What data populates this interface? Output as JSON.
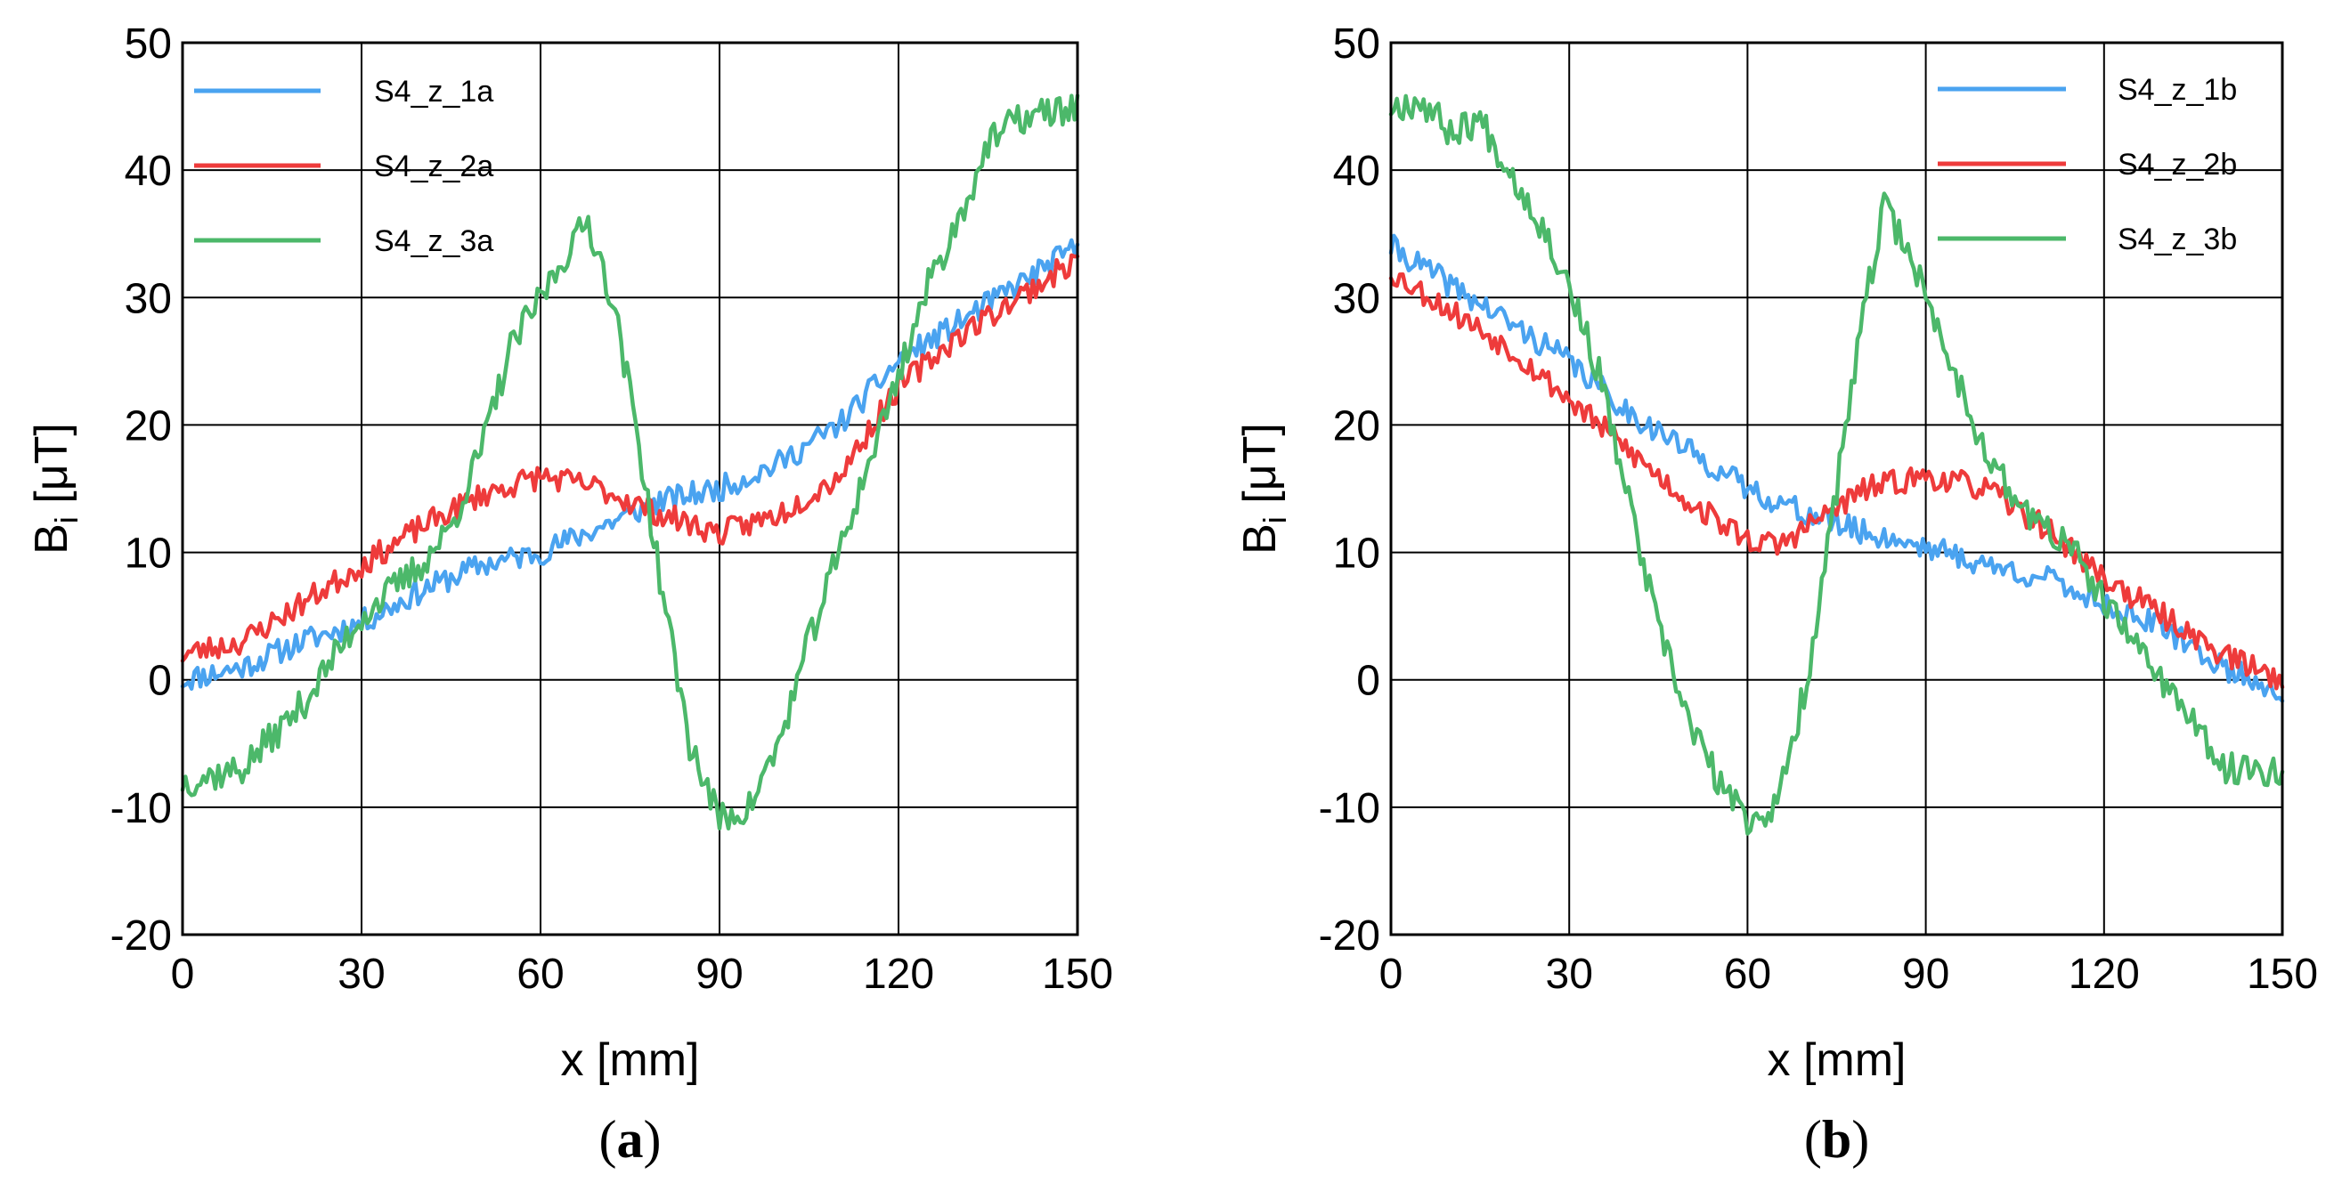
{
  "colors": {
    "series1": "#4aa3f0",
    "series2": "#ee3b3b",
    "series3": "#4cb86a"
  },
  "chart_data": [
    {
      "type": "line",
      "caption": "a",
      "xlabel": "x [mm]",
      "ylabel": "B",
      "ylabel_sub": "i",
      "ylabel_unit": " [μT]",
      "xlim": [
        0,
        150
      ],
      "ylim": [
        -20,
        50
      ],
      "xticks": [
        0,
        30,
        60,
        90,
        120,
        150
      ],
      "yticks": [
        -20,
        -10,
        0,
        10,
        20,
        30,
        40,
        50
      ],
      "grid": true,
      "legend_position": "top-left",
      "series": [
        {
          "name": "S4_z_1a",
          "color": "#4aa3f0",
          "noise": 1.0,
          "seed": 11,
          "x": [
            0,
            10,
            20,
            30,
            40,
            50,
            60,
            70,
            80,
            90,
            100,
            110,
            120,
            130,
            140,
            150
          ],
          "y": [
            0,
            1,
            3,
            4.5,
            7,
            9,
            10,
            12,
            14,
            15,
            17,
            20,
            25,
            28,
            31,
            34
          ]
        },
        {
          "name": "S4_z_2a",
          "color": "#ee3b3b",
          "noise": 1.0,
          "seed": 23,
          "x": [
            0,
            10,
            20,
            30,
            40,
            50,
            60,
            70,
            80,
            90,
            100,
            110,
            120,
            130,
            140,
            150
          ],
          "y": [
            2,
            3,
            6,
            9,
            12,
            14.5,
            16,
            15,
            13,
            11.5,
            13,
            16,
            23,
            27,
            30,
            33
          ]
        },
        {
          "name": "S4_z_3a",
          "color": "#4cb86a",
          "noise": 1.3,
          "seed": 37,
          "x": [
            0,
            10,
            20,
            30,
            40,
            45,
            50,
            55,
            60,
            65,
            68,
            72,
            76,
            80,
            85,
            90,
            95,
            100,
            105,
            110,
            115,
            120,
            125,
            130,
            135,
            140,
            150
          ],
          "y": [
            -8,
            -7,
            -2,
            5,
            9,
            12,
            18,
            26,
            30,
            34,
            36,
            30,
            20,
            8,
            -5,
            -11,
            -10,
            -5,
            3,
            10,
            17,
            24,
            31,
            36,
            42,
            44,
            45
          ]
        }
      ]
    },
    {
      "type": "line",
      "caption": "b",
      "xlabel": "x [mm]",
      "ylabel": "B",
      "ylabel_sub": "i",
      "ylabel_unit": " [μT]",
      "xlim": [
        0,
        150
      ],
      "ylim": [
        -20,
        50
      ],
      "xticks": [
        0,
        30,
        60,
        90,
        120,
        150
      ],
      "yticks": [
        -20,
        -10,
        0,
        10,
        20,
        30,
        40,
        50
      ],
      "grid": true,
      "legend_position": "top-right",
      "series": [
        {
          "name": "S4_z_1b",
          "color": "#4aa3f0",
          "noise": 1.0,
          "seed": 41,
          "x": [
            0,
            10,
            20,
            30,
            40,
            50,
            60,
            70,
            80,
            90,
            100,
            110,
            120,
            130,
            140,
            150
          ],
          "y": [
            34,
            31,
            28,
            25,
            21,
            18,
            15,
            13,
            11.5,
            10.5,
            9,
            8,
            6,
            4,
            1,
            -1
          ]
        },
        {
          "name": "S4_z_2b",
          "color": "#ee3b3b",
          "noise": 1.0,
          "seed": 53,
          "x": [
            0,
            10,
            20,
            30,
            40,
            50,
            60,
            65,
            70,
            80,
            90,
            100,
            110,
            120,
            130,
            140,
            150
          ],
          "y": [
            32,
            29,
            26,
            22,
            18,
            14,
            11,
            10.5,
            12,
            15,
            16,
            15,
            12,
            8,
            5,
            2,
            0
          ]
        },
        {
          "name": "S4_z_3b",
          "color": "#4cb86a",
          "noise": 1.3,
          "seed": 67,
          "x": [
            0,
            5,
            10,
            15,
            20,
            25,
            30,
            35,
            40,
            45,
            50,
            55,
            60,
            65,
            70,
            75,
            80,
            83,
            87,
            90,
            95,
            100,
            105,
            110,
            115,
            120,
            130,
            140,
            150
          ],
          "y": [
            45,
            45.5,
            43,
            44,
            40,
            36,
            31,
            24,
            14,
            4,
            -3,
            -8,
            -11,
            -10,
            0,
            15,
            30,
            37,
            34,
            30,
            24,
            18,
            14,
            12,
            10,
            6,
            0,
            -7,
            -7
          ]
        }
      ]
    }
  ]
}
